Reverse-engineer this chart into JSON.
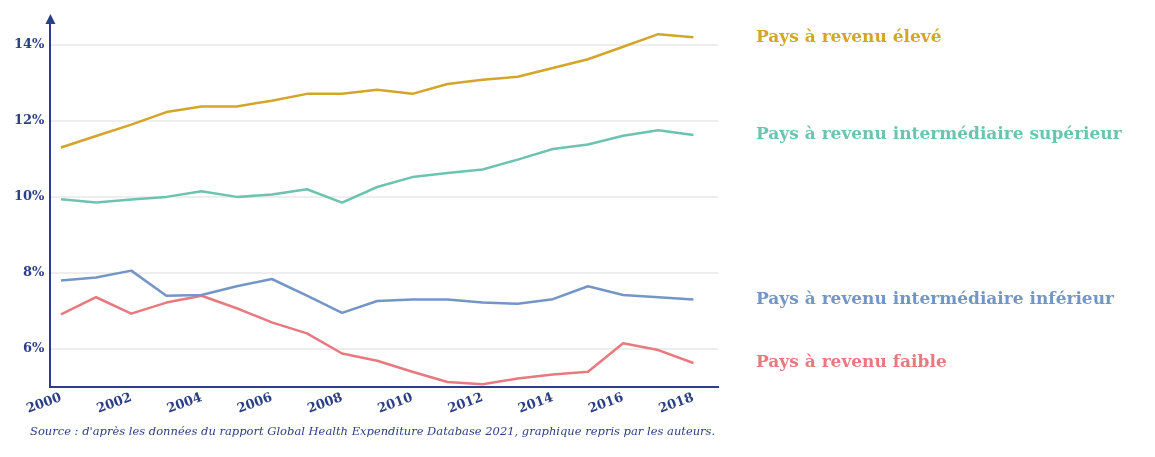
{
  "chart_data": {
    "type": "line",
    "x": [
      2000,
      2001,
      2002,
      2003,
      2004,
      2005,
      2006,
      2007,
      2008,
      2009,
      2010,
      2011,
      2012,
      2013,
      2014,
      2015,
      2016,
      2017,
      2018
    ],
    "series": [
      {
        "name": "Pays à revenu élevé",
        "color": "#d4a52a",
        "values": [
          11.3,
          11.6,
          11.9,
          12.23,
          12.38,
          12.38,
          12.53,
          12.71,
          12.71,
          12.82,
          12.71,
          12.97,
          13.08,
          13.16,
          13.39,
          13.62,
          13.95,
          14.28,
          14.2
        ]
      },
      {
        "name": "Pays à revenu intermédiaire supérieur",
        "color": "#6cc4b0",
        "values": [
          9.94,
          9.85,
          9.93,
          10.0,
          10.15,
          10.0,
          10.06,
          10.2,
          9.85,
          10.26,
          10.52,
          10.63,
          10.72,
          10.98,
          11.26,
          11.38,
          11.61,
          11.75,
          11.63
        ]
      },
      {
        "name": "Pays à revenu intermédiaire inférieur",
        "color": "#7396c6",
        "values": [
          7.8,
          7.88,
          8.06,
          7.4,
          7.42,
          7.65,
          7.84,
          7.4,
          6.95,
          7.26,
          7.3,
          7.3,
          7.22,
          7.19,
          7.31,
          7.65,
          7.42,
          7.36,
          7.3
        ]
      },
      {
        "name": "Pays à revenu faible",
        "color": "#e8797f",
        "values": [
          6.91,
          7.36,
          6.93,
          7.22,
          7.4,
          7.07,
          6.7,
          6.41,
          5.88,
          5.69,
          5.4,
          5.13,
          5.07,
          5.22,
          5.33,
          5.4,
          6.15,
          5.97,
          5.63
        ]
      }
    ],
    "xlim": [
      1999.7,
      2018.7
    ],
    "xticks": [
      2000,
      2002,
      2004,
      2006,
      2008,
      2010,
      2012,
      2014,
      2016,
      2018
    ],
    "ylim": [
      5,
      14.6
    ],
    "yticks": [
      {
        "value": 6,
        "label": "6%"
      },
      {
        "value": 8,
        "label": "8%"
      },
      {
        "value": 10,
        "label": "10%"
      },
      {
        "value": 12,
        "label": "12%"
      },
      {
        "value": 14,
        "label": "14%"
      }
    ],
    "grid": "y",
    "marker": "none",
    "line_style": "solid",
    "annotations": [
      "Source : d'après les données du rapport Global Health Expenditure Database 2021, graphique repris par les auteurs."
    ]
  }
}
